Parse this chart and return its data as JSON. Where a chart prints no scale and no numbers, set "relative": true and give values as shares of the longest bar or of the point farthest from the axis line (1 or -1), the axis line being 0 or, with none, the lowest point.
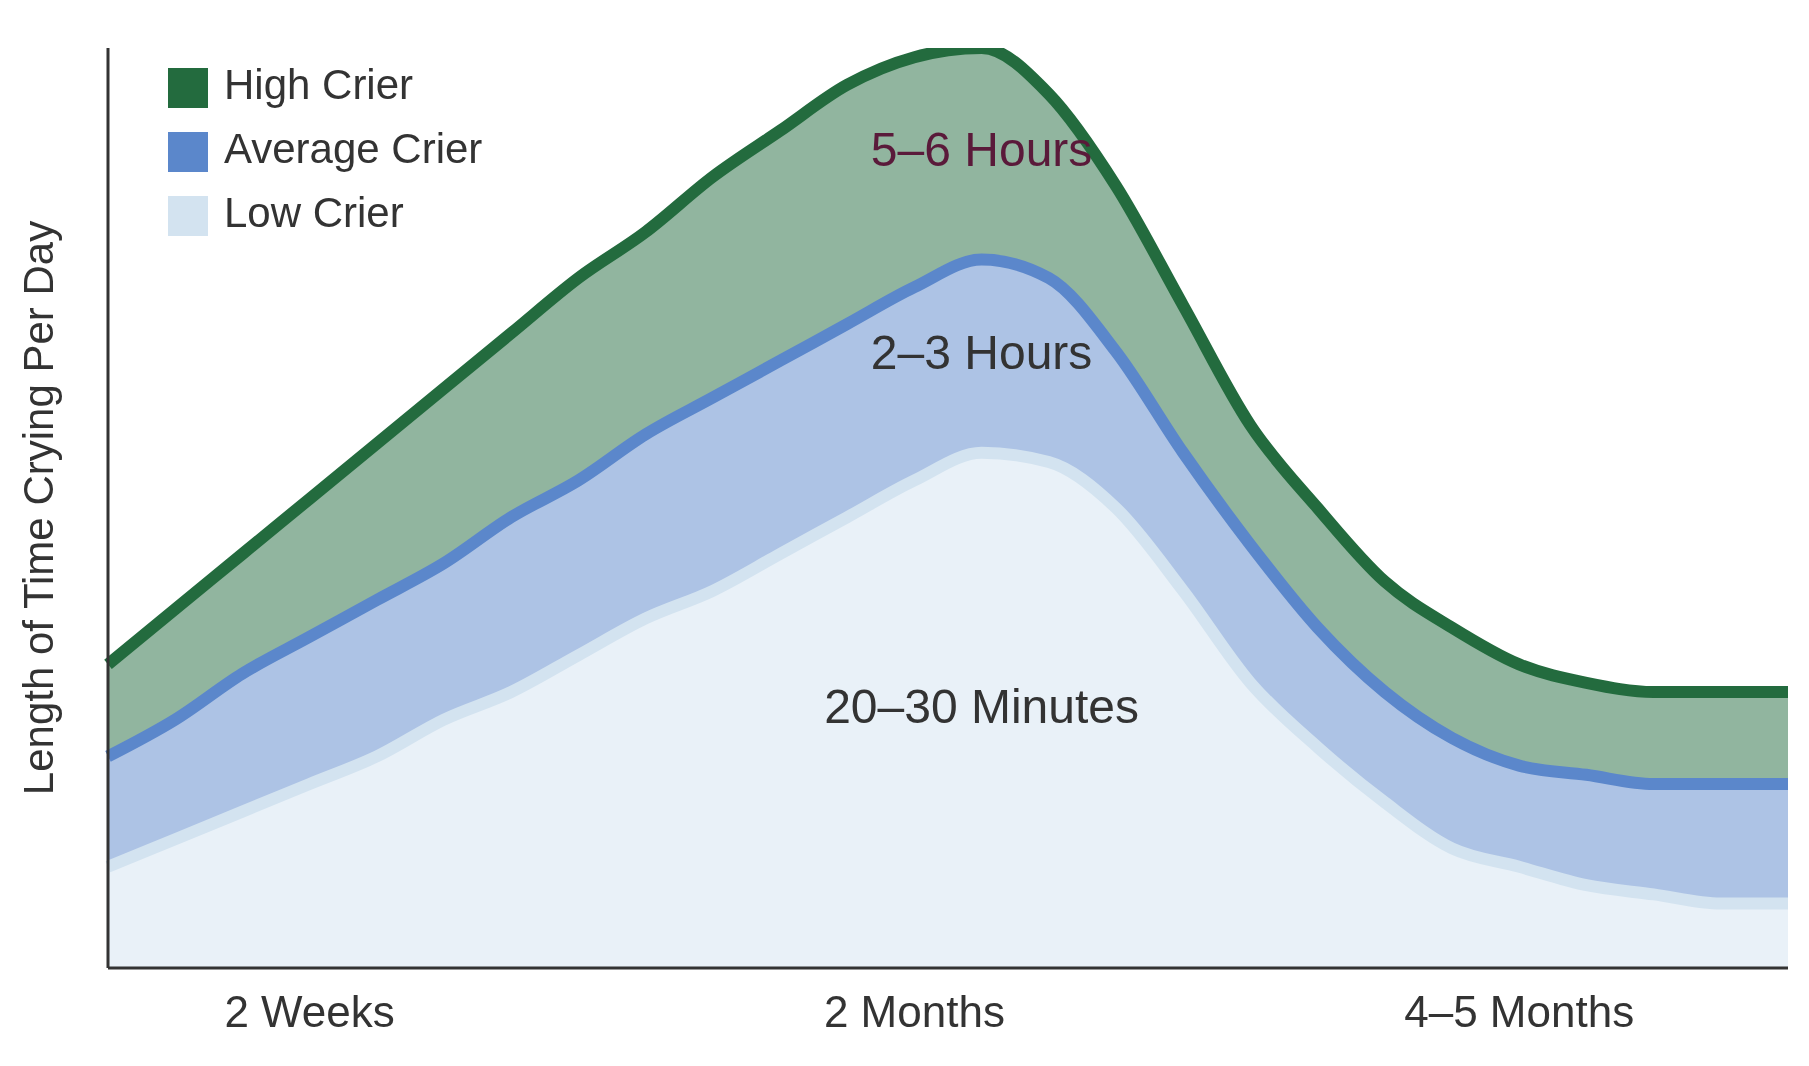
{
  "chart_data": {
    "type": "area",
    "relative": true,
    "ylabel": "Length of Time Crying Per Day",
    "tick_labels": "x",
    "legend": "top left",
    "grid": false,
    "categories": [
      null,
      null,
      null,
      "2 Weeks",
      null,
      null,
      null,
      null,
      null,
      null,
      null,
      null,
      "2 Months",
      null,
      null,
      null,
      null,
      null,
      null,
      null,
      null,
      "4–5 Months",
      null,
      null,
      null,
      null
    ],
    "series": [
      {
        "name": "High Crier",
        "color": "#236b3e",
        "values": [
          0.33,
          0.39,
          0.45,
          0.51,
          0.57,
          0.63,
          0.69,
          0.75,
          0.8,
          0.86,
          0.91,
          0.96,
          0.99,
          1.0,
          0.95,
          0.85,
          0.72,
          0.59,
          0.5,
          0.42,
          0.37,
          0.33,
          0.31,
          0.3,
          0.3,
          0.3
        ]
      },
      {
        "name": "Average Crier",
        "color": "#5b87cb",
        "values": [
          0.23,
          0.27,
          0.32,
          0.36,
          0.4,
          0.44,
          0.49,
          0.53,
          0.58,
          0.62,
          0.66,
          0.7,
          0.74,
          0.77,
          0.75,
          0.67,
          0.56,
          0.46,
          0.37,
          0.3,
          0.25,
          0.22,
          0.21,
          0.2,
          0.2,
          0.2
        ]
      },
      {
        "name": "Low Crier",
        "color": "#d3e3f0",
        "values": [
          0.11,
          0.14,
          0.17,
          0.2,
          0.23,
          0.27,
          0.3,
          0.34,
          0.38,
          0.41,
          0.45,
          0.49,
          0.53,
          0.56,
          0.55,
          0.5,
          0.41,
          0.31,
          0.24,
          0.18,
          0.13,
          0.11,
          0.09,
          0.08,
          0.07,
          0.07
        ]
      }
    ],
    "annotations": [
      "5–6 Hours",
      "2–3 Hours",
      "20–30 Minutes"
    ]
  }
}
